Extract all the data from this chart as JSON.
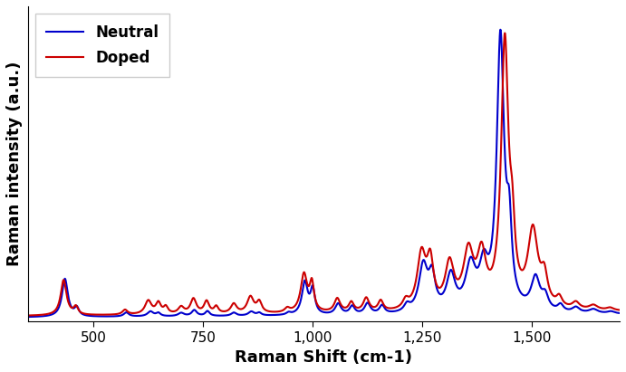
{
  "title": "",
  "xlabel": "Raman Shift (cm-1)",
  "ylabel": "Raman intensity (a.u.)",
  "neutral_color": "#0000CC",
  "doped_color": "#CC0000",
  "line_width": 1.5,
  "legend_labels": [
    "Neutral",
    "Doped"
  ],
  "xlim": [
    350,
    1700
  ],
  "xlabel_fontsize": 13,
  "ylabel_fontsize": 13,
  "legend_fontsize": 12,
  "tick_fontsize": 11,
  "background_color": "#ffffff"
}
